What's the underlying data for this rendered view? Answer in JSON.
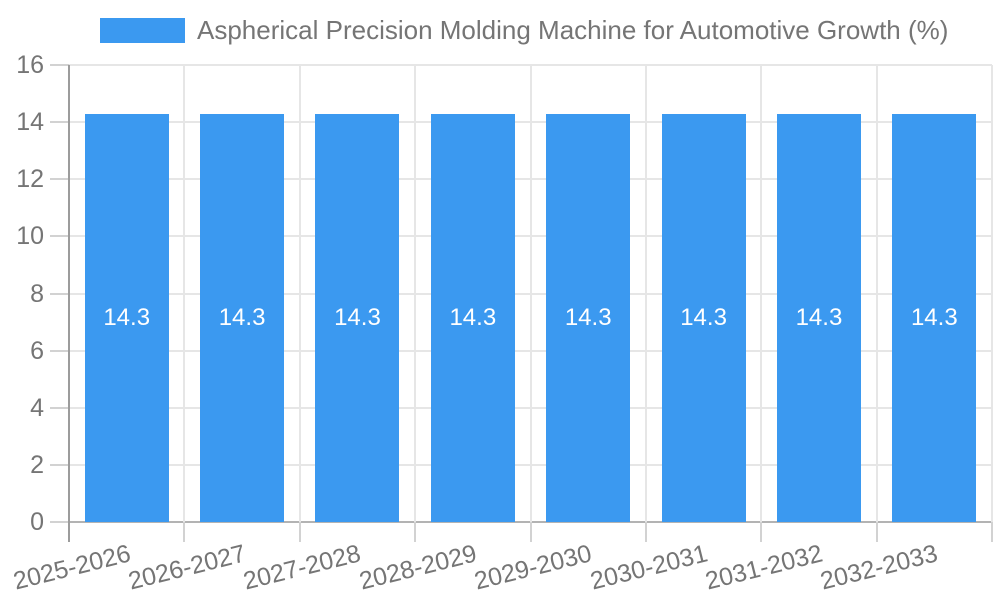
{
  "legend": {
    "label": "Aspherical Precision Molding Machine for Automotive Growth (%)"
  },
  "chart_data": {
    "type": "bar",
    "title": "Aspherical Precision Molding Machine for Automotive Growth (%)",
    "categories": [
      "2025-2026",
      "2026-2027",
      "2027-2028",
      "2028-2029",
      "2029-2030",
      "2030-2031",
      "2031-2032",
      "2032-2033"
    ],
    "values": [
      14.3,
      14.3,
      14.3,
      14.3,
      14.3,
      14.3,
      14.3,
      14.3
    ],
    "value_labels": [
      "14.3",
      "14.3",
      "14.3",
      "14.3",
      "14.3",
      "14.3",
      "14.3",
      "14.3"
    ],
    "xlabel": "",
    "ylabel": "",
    "ylim": [
      0,
      16
    ],
    "yticks": [
      0,
      2,
      4,
      6,
      8,
      10,
      12,
      14,
      16
    ],
    "grid": true,
    "legend_position": "top-center",
    "bar_color": "#3b99f0",
    "value_label_color": "#ffffff",
    "axis_text_color": "#757575",
    "gridline_color": "#e6e6e6",
    "axis_line_color": "#9c9c9c"
  }
}
